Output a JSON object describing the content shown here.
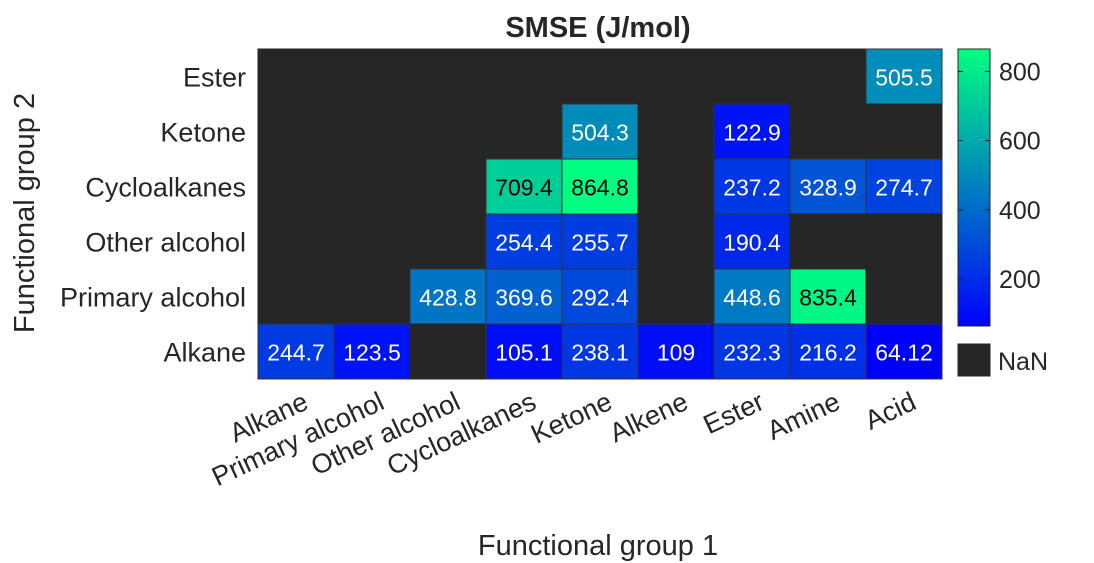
{
  "chart_data": {
    "type": "heatmap",
    "title": "SMSE (J/mol)",
    "xlabel": "Functional group 1",
    "ylabel": "Functional group 2",
    "x_categories": [
      "Alkane",
      "Primary alcohol",
      "Other alcohol",
      "Cycloalkanes",
      "Ketone",
      "Alkene",
      "Ester",
      "Amine",
      "Acid"
    ],
    "y_categories": [
      "Ester",
      "Ketone",
      "Cycloalkanes",
      "Other alcohol",
      "Primary alcohol",
      "Alkane"
    ],
    "values": [
      [
        null,
        null,
        null,
        null,
        null,
        null,
        null,
        null,
        505.5
      ],
      [
        null,
        null,
        null,
        null,
        504.3,
        null,
        122.9,
        null,
        null
      ],
      [
        null,
        null,
        null,
        709.4,
        864.8,
        null,
        237.2,
        328.9,
        274.7
      ],
      [
        null,
        null,
        null,
        254.4,
        255.7,
        null,
        190.4,
        null,
        null
      ],
      [
        null,
        null,
        428.8,
        369.6,
        292.4,
        null,
        448.6,
        835.4,
        null
      ],
      [
        244.7,
        123.5,
        null,
        105.1,
        238.1,
        109,
        232.3,
        216.2,
        64.12
      ]
    ],
    "value_labels": [
      [
        "",
        "",
        "",
        "",
        "",
        "",
        "",
        "",
        "505.5"
      ],
      [
        "",
        "",
        "",
        "",
        "504.3",
        "",
        "122.9",
        "",
        ""
      ],
      [
        "",
        "",
        "",
        "709.4",
        "864.8",
        "",
        "237.2",
        "328.9",
        "274.7"
      ],
      [
        "",
        "",
        "",
        "254.4",
        "255.7",
        "",
        "190.4",
        "",
        ""
      ],
      [
        "",
        "",
        "428.8",
        "369.6",
        "292.4",
        "",
        "448.6",
        "835.4",
        ""
      ],
      [
        "244.7",
        "123.5",
        "",
        "105.1",
        "238.1",
        "109",
        "232.3",
        "216.2",
        "64.12"
      ]
    ],
    "colorbar": {
      "range": [
        64.12,
        864.8
      ],
      "ticks": [
        200,
        400,
        600,
        800
      ],
      "tick_labels": [
        "200",
        "400",
        "600",
        "800"
      ],
      "colormap": [
        "#0000ff",
        "#00ff80"
      ]
    },
    "nan_legend": {
      "label": "NaN",
      "color": "#262626"
    },
    "colors": {
      "nan": "#262626",
      "cell_border": "#333333",
      "text_light": "#ffffff",
      "text_dark": "#000000"
    }
  }
}
